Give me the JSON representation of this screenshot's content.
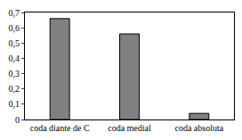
{
  "chart_data": {
    "type": "bar",
    "categories": [
      "coda diante de C",
      "coda medial",
      "coda absoluta"
    ],
    "values": [
      0.66,
      0.56,
      0.04
    ],
    "color": "#808080",
    "ylim": [
      0,
      0.7
    ],
    "yticks": [
      0,
      {
        "value": 0.1,
        "label": "0,1"
      },
      {
        "value": 0.2,
        "label": "0,2"
      },
      {
        "value": 0.3,
        "label": "0,3"
      },
      {
        "value": 0.4,
        "label": "0,4"
      },
      {
        "value": 0.5,
        "label": "0,5"
      },
      {
        "value": 0.6,
        "label": "0,6"
      },
      {
        "value": 0.7,
        "label": "0,7"
      }
    ],
    "grid": false
  }
}
